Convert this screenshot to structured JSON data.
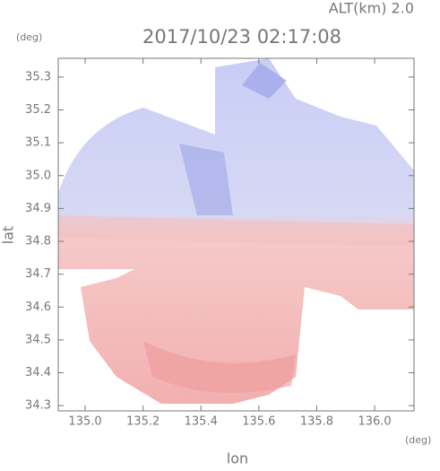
{
  "chart_data": {
    "type": "radar-field",
    "title": "2017/10/23 02:17:08",
    "altitude_label": "ALT(km) 2.0",
    "y_unit": "(deg)",
    "x_unit": "(deg)",
    "xlabel": "lon",
    "ylabel": "lat",
    "xlim": [
      134.907,
      136.136
    ],
    "ylim": [
      34.284,
      35.357
    ],
    "xticks": [
      {
        "value": 135.0,
        "label": "135.0"
      },
      135.2,
      135.4,
      135.6,
      135.8,
      {
        "value": 136.0,
        "label": "136.0"
      }
    ],
    "yticks": [
      34.3,
      34.4,
      34.5,
      34.6,
      34.7,
      34.8,
      34.9,
      {
        "value": 35.0,
        "label": "35.0"
      },
      35.1,
      35.2,
      35.3
    ]
  }
}
